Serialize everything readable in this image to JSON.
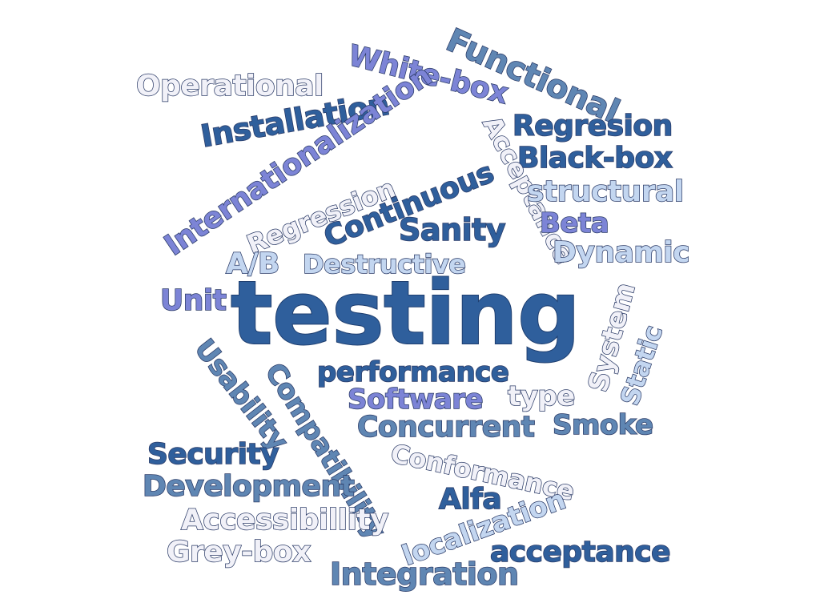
{
  "palette": {
    "navy": "#2f5f9c",
    "steel": "#5f86b3",
    "periwinkle": "#7c84d6",
    "light_blue": "#c3d6f0",
    "pale": "#f1f1f8"
  },
  "words": [
    {
      "text": "testing",
      "color": "#2f5f9c"
    },
    {
      "text": "Functional",
      "color": "#5f86b3"
    },
    {
      "text": "White-box",
      "color": "#7c84d6"
    },
    {
      "text": "Operational",
      "color": "#f1f1f8"
    },
    {
      "text": "Installation",
      "color": "#2f5f9c"
    },
    {
      "text": "Internationalization",
      "color": "#7c84d6"
    },
    {
      "text": "Regresion",
      "color": "#2f5f9c"
    },
    {
      "text": "Black-box",
      "color": "#2f5f9c"
    },
    {
      "text": "Acceptance",
      "color": "#f1f1f8"
    },
    {
      "text": "structural",
      "color": "#c3d6f0"
    },
    {
      "text": "Regression",
      "color": "#f1f1f8"
    },
    {
      "text": "Continuous",
      "color": "#2f5f9c"
    },
    {
      "text": "Sanity",
      "color": "#2f5f9c"
    },
    {
      "text": "Beta",
      "color": "#7c84d6"
    },
    {
      "text": "Dynamic",
      "color": "#c3d6f0"
    },
    {
      "text": "A/B",
      "color": "#c3d6f0"
    },
    {
      "text": "Destructive",
      "color": "#c3d6f0"
    },
    {
      "text": "Unit",
      "color": "#7c84d6"
    },
    {
      "text": "System",
      "color": "#f1f1f8"
    },
    {
      "text": "Static",
      "color": "#c3d6f0"
    },
    {
      "text": "Usability",
      "color": "#5f86b3"
    },
    {
      "text": "performance",
      "color": "#2f5f9c"
    },
    {
      "text": "Compatibility",
      "color": "#5f86b3"
    },
    {
      "text": "Software",
      "color": "#7c84d6"
    },
    {
      "text": "type",
      "color": "#f1f1f8"
    },
    {
      "text": "Concurrent",
      "color": "#5f86b3"
    },
    {
      "text": "Smoke",
      "color": "#5f86b3"
    },
    {
      "text": "Security",
      "color": "#2f5f9c"
    },
    {
      "text": "Conformance",
      "color": "#f1f1f8"
    },
    {
      "text": "Development",
      "color": "#5f86b3"
    },
    {
      "text": "Alfa",
      "color": "#2f5f9c"
    },
    {
      "text": "Accessibillity",
      "color": "#f1f1f8"
    },
    {
      "text": "localization",
      "color": "#c3d6f0"
    },
    {
      "text": "Grey-box",
      "color": "#f1f1f8"
    },
    {
      "text": "acceptance",
      "color": "#2f5f9c"
    },
    {
      "text": "Integration",
      "color": "#5f86b3"
    }
  ]
}
